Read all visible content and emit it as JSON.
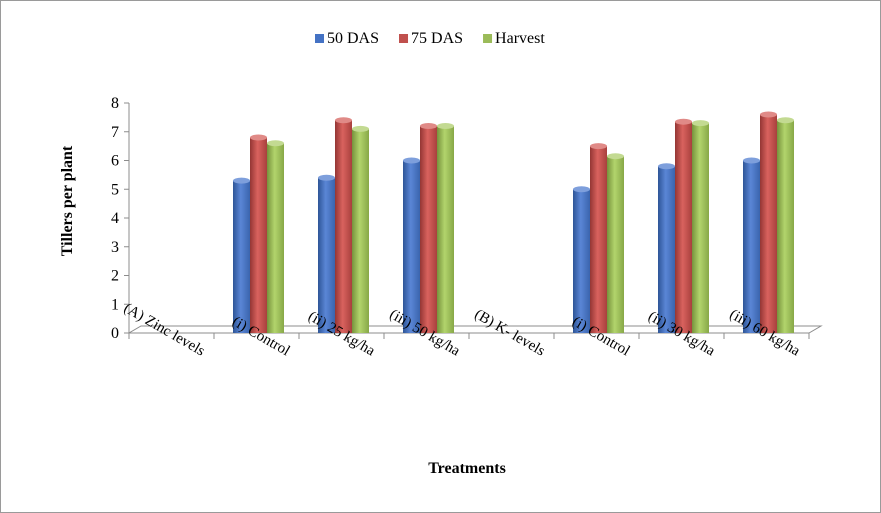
{
  "chart_data": {
    "type": "bar",
    "categories": [
      "(A) Zinc levels",
      "(i)  Control",
      "(ii)  25 kg/ha",
      "(iii) 50 kg/ha",
      "(B) K- levels",
      "(i)  Control",
      "(ii)  30 kg/ha",
      "(iii) 60 kg/ha"
    ],
    "series": [
      {
        "name": "50 DAS",
        "values": [
          null,
          5.3,
          5.4,
          6.0,
          null,
          5.0,
          5.8,
          6.0
        ]
      },
      {
        "name": "75 DAS",
        "values": [
          null,
          6.8,
          7.4,
          7.2,
          null,
          6.5,
          7.35,
          7.6
        ]
      },
      {
        "name": "Harvest",
        "values": [
          null,
          6.6,
          7.1,
          7.2,
          null,
          6.15,
          7.3,
          7.4
        ]
      }
    ],
    "colors": [
      "#4472c4",
      "#c0504d",
      "#9bbb59"
    ],
    "title": "",
    "xlabel": "Treatments",
    "ylabel": "Tillers per plant",
    "ylim": [
      0,
      8
    ],
    "yticks": [
      0,
      1,
      2,
      3,
      4,
      5,
      6,
      7,
      8
    ],
    "grid": false,
    "legend_position": "top-center"
  }
}
